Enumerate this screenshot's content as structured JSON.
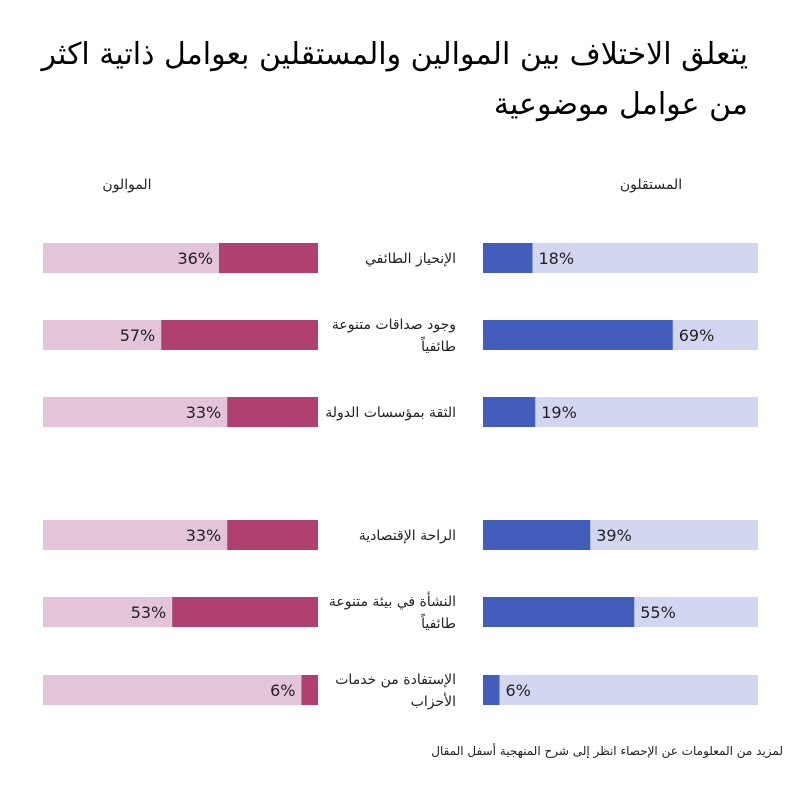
{
  "chart_data": {
    "type": "bar",
    "title": "يتعلق الاختلاف بين الموالين والمستقلين بعوامل ذاتية اكثر من عوامل موضوعية",
    "categories": [
      "الإنحياز الطائفي",
      "وجود صداقات متنوعة طائفياً",
      "الثقة بمؤسسات الدولة",
      "الراحة الإقتصادية",
      "النشأة في بيئة متنوعة طائفياً",
      "الإستفادة من خدمات الأحزاب"
    ],
    "category_lines": [
      [
        "الإنحياز الطائفي"
      ],
      [
        "وجود صداقات متنوعة",
        "طائفياً"
      ],
      [
        "الثقة بمؤسسات الدولة"
      ],
      [
        "الراحة الإقتصادية"
      ],
      [
        "النشأة في بيئة متنوعة",
        "طائفياً"
      ],
      [
        "الإستفادة من خدمات",
        "الأحزاب"
      ]
    ],
    "groups": [
      {
        "categories": [
          0,
          1,
          2
        ]
      },
      {
        "categories": [
          3,
          4,
          5
        ]
      }
    ],
    "series": [
      {
        "name": "الموالون",
        "values": [
          36,
          57,
          33,
          33,
          53,
          6
        ],
        "labels": [
          "36%",
          "57%",
          "33%",
          "33%",
          "53%",
          "6%"
        ],
        "color": "#B0406F",
        "track_color": "#E3C4D9"
      },
      {
        "name": "المستقلون",
        "values": [
          18,
          69,
          19,
          39,
          55,
          6
        ],
        "labels": [
          "18%",
          "69%",
          "19%",
          "39%",
          "55%",
          "6%"
        ],
        "color": "#425DBC",
        "track_color": "#D2D6F0"
      }
    ],
    "xlim": [
      0,
      100
    ],
    "value_format": "percent",
    "footnote": "لمزيد من المعلومات عن الإحصاء انظر إلى شرح المنهجية أسفل المقال"
  }
}
